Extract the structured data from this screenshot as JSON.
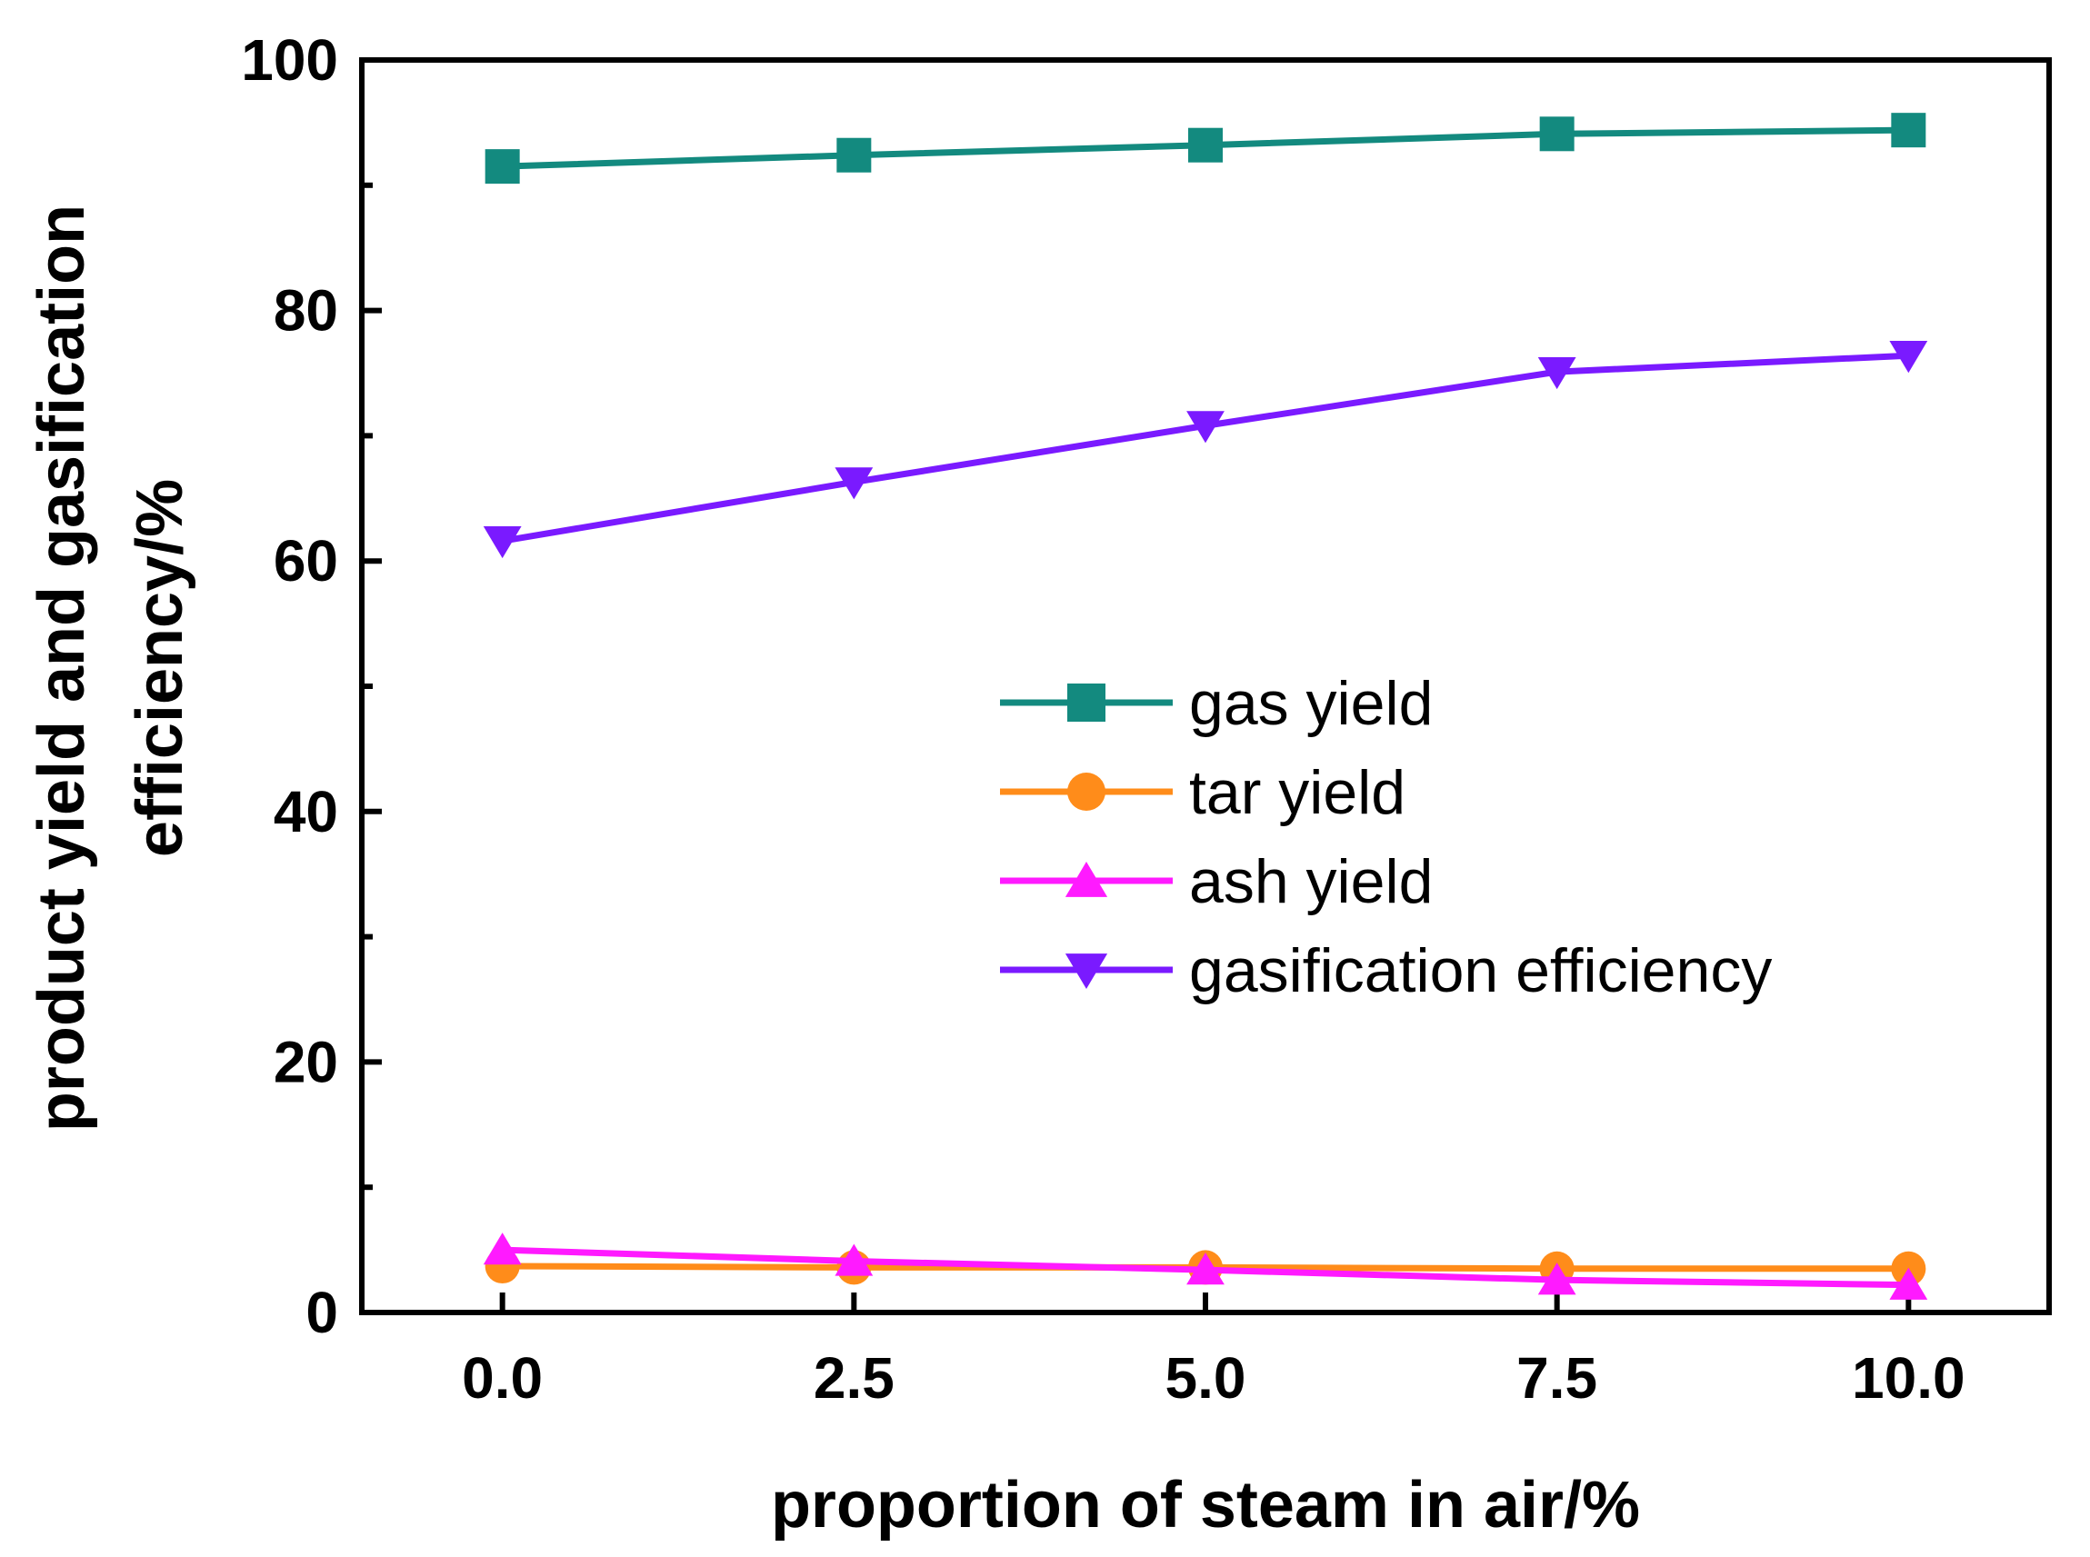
{
  "chart_data": {
    "type": "line",
    "title": "",
    "xlabel": "proportion of steam in air/%",
    "ylabel_lines": [
      "product yield and gasification",
      "efficiency/%"
    ],
    "x": [
      0.0,
      2.5,
      5.0,
      7.5,
      10.0
    ],
    "xtick_labels": [
      "0.0",
      "2.5",
      "5.0",
      "7.5",
      "10.0"
    ],
    "xlim": [
      -1.0,
      11.0
    ],
    "ylim": [
      0,
      100
    ],
    "yticks": [
      0,
      20,
      40,
      60,
      80,
      100
    ],
    "ytick_labels": [
      "0",
      "20",
      "40",
      "60",
      "80",
      "100"
    ],
    "grid": false,
    "legend_position": "center-right",
    "series": [
      {
        "name": "gas yield",
        "marker": "square",
        "color": "#138a7f",
        "values": [
          91.5,
          92.4,
          93.2,
          94.1,
          94.4
        ]
      },
      {
        "name": "tar yield",
        "marker": "circle",
        "color": "#ff8c1a",
        "values": [
          3.7,
          3.6,
          3.6,
          3.5,
          3.5
        ]
      },
      {
        "name": "ash yield",
        "marker": "triangle-up",
        "color": "#ff1aff",
        "values": [
          5.0,
          4.1,
          3.4,
          2.6,
          2.2
        ]
      },
      {
        "name": "gasification efficiency",
        "marker": "triangle-down",
        "color": "#7a1aff",
        "values": [
          61.6,
          66.3,
          70.8,
          75.1,
          76.4
        ]
      }
    ]
  }
}
